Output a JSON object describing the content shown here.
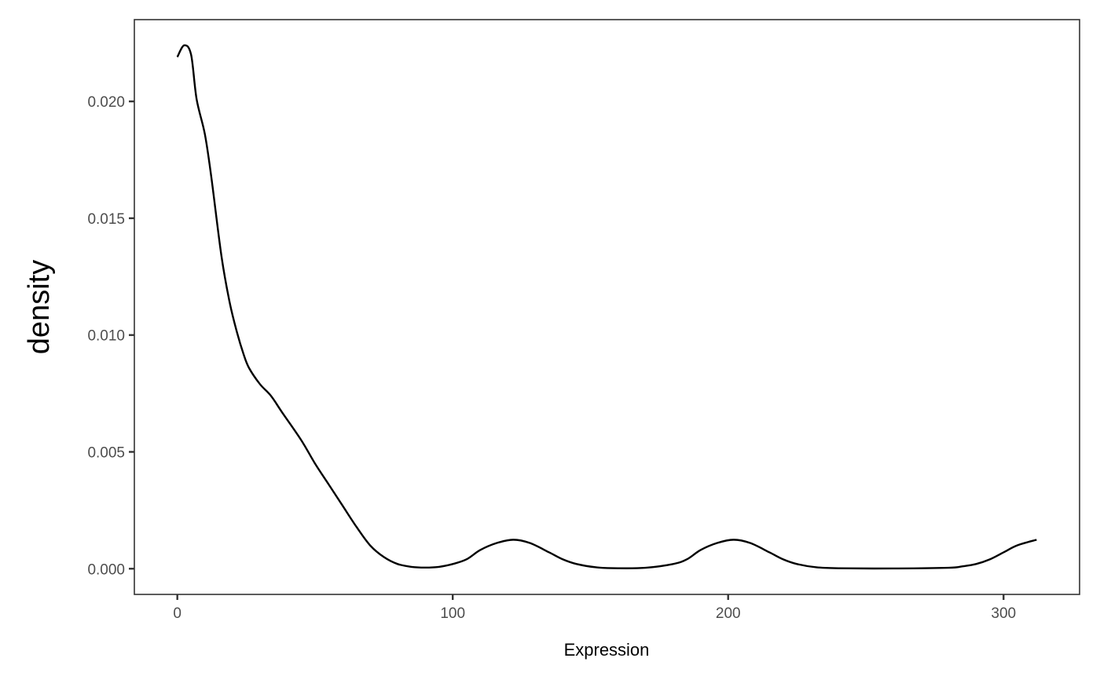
{
  "chart_data": {
    "type": "line",
    "title": "",
    "xlabel": "Expression",
    "ylabel": "density",
    "xlim": [
      -15.6,
      327.6
    ],
    "ylim": [
      -0.0011,
      0.0235
    ],
    "x_ticks": [
      0,
      100,
      200,
      300
    ],
    "x_tick_labels": [
      "0",
      "100",
      "200",
      "300"
    ],
    "y_ticks": [
      0,
      0.005,
      0.01,
      0.015,
      0.02
    ],
    "y_tick_labels": [
      "0.000",
      "0.005",
      "0.010",
      "0.015",
      "0.020"
    ],
    "grid": false,
    "line_color": "#000000",
    "x": [
      0,
      2.5,
      5,
      7,
      10,
      12.3,
      16,
      19,
      21.7,
      24,
      26,
      30,
      34,
      38,
      45,
      50,
      55,
      60,
      65,
      70,
      75,
      80,
      85,
      90,
      95,
      100,
      105,
      110,
      116,
      122,
      128,
      135,
      140,
      145,
      152,
      160,
      170,
      180,
      185,
      190,
      196,
      202,
      208,
      215,
      220,
      225,
      232,
      240,
      260,
      280,
      285,
      290,
      295,
      300,
      305,
      312
    ],
    "y": [
      0.0219,
      0.0224,
      0.022,
      0.0201,
      0.0186,
      0.0168,
      0.0134,
      0.0114,
      0.0101,
      0.0092,
      0.0086,
      0.0079,
      0.0074,
      0.0067,
      0.0055,
      0.0045,
      0.0036,
      0.0027,
      0.0018,
      0.001,
      0.0005,
      0.0002,
      8e-05,
      5e-05,
      8e-05,
      0.0002,
      0.0004,
      0.0008,
      0.0011,
      0.00124,
      0.0011,
      0.0007,
      0.0004,
      0.0002,
      6e-05,
      2e-05,
      4e-05,
      0.0002,
      0.0004,
      0.0008,
      0.0011,
      0.00124,
      0.0011,
      0.0007,
      0.0004,
      0.0002,
      6e-05,
      2e-05,
      1e-05,
      4e-05,
      0.0001,
      0.0002,
      0.0004,
      0.0007,
      0.001,
      0.00124
    ]
  }
}
